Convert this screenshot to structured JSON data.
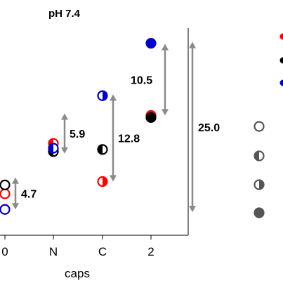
{
  "chart_data": {
    "type": "scatter",
    "title": "pH 7.4",
    "xlabel": "caps",
    "ylabel": "",
    "categories": [
      "0",
      "N",
      "C",
      "2"
    ],
    "series": [
      {
        "marker": "open",
        "color": "#ff0000",
        "values": [
          3.2,
          10.6,
          5.0,
          14.7
        ]
      },
      {
        "marker": "open",
        "color": "#000000",
        "values": [
          4.5,
          9.4,
          9.7,
          14.4
        ]
      },
      {
        "marker": "open",
        "color": "#0000cc",
        "values": [
          0.9,
          9.9,
          17.6,
          25.3
        ]
      }
    ],
    "annotations": [
      {
        "label": "4.7",
        "category": "0",
        "from": 0.9,
        "to": 5.6
      },
      {
        "label": "5.9",
        "category": "N",
        "from": 9.1,
        "to": 15.0
      },
      {
        "label": "12.8",
        "category": "C",
        "from": 5.0,
        "to": 17.8
      },
      {
        "label": "10.5",
        "category": "2",
        "from": 14.7,
        "to": 25.2
      },
      {
        "label": "25.0",
        "category": "2",
        "from": 0.5,
        "to": 25.5
      }
    ],
    "legend_position": "right",
    "legend_markers": [
      "open",
      "half-left",
      "half-right",
      "filled"
    ],
    "grid": false
  }
}
